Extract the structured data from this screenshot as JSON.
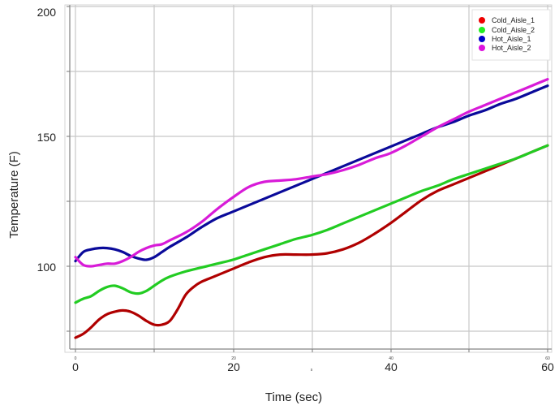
{
  "chart_data": {
    "type": "line",
    "title": "",
    "xlabel": "Time (sec)",
    "ylabel": "Temperature (F)",
    "xlim": [
      0,
      60
    ],
    "ylim": [
      68,
      201
    ],
    "x_ticks": [
      0,
      20,
      40,
      60
    ],
    "y_ticks": [
      100,
      150,
      200
    ],
    "x_minor_grid": [
      10,
      30,
      50
    ],
    "y_minor_grid": [
      75,
      125,
      175
    ],
    "grid": true,
    "legend_position": "top-right",
    "series": [
      {
        "name": "Cold_Aisle_1",
        "color": "#b00000",
        "legend_color": "#ff0000",
        "x": [
          0,
          1,
          2,
          3,
          4,
          5,
          6,
          7,
          8,
          9,
          10,
          11,
          12,
          13,
          14,
          15,
          16,
          18,
          20,
          22,
          24,
          26,
          28,
          30,
          32,
          34,
          36,
          38,
          40,
          42,
          44,
          46,
          48,
          50,
          52,
          54,
          56,
          58,
          60
        ],
        "values": [
          72.5,
          74,
          76.5,
          79.5,
          81.5,
          82.5,
          83,
          82.5,
          81,
          79,
          77.5,
          77.5,
          79,
          83.5,
          89,
          92,
          94,
          96.5,
          99,
          101.5,
          103.5,
          104.5,
          104.5,
          104.5,
          105,
          106.5,
          109,
          112.5,
          116.5,
          121,
          125.5,
          129,
          131.5,
          134,
          136.5,
          139,
          141.5,
          144,
          146.5
        ]
      },
      {
        "name": "Cold_Aisle_2",
        "color": "#22cc22",
        "legend_color": "#22ee22",
        "x": [
          0,
          1,
          2,
          3,
          4,
          5,
          6,
          7,
          8,
          9,
          10,
          11,
          12,
          14,
          16,
          18,
          20,
          22,
          24,
          26,
          28,
          30,
          32,
          34,
          36,
          38,
          40,
          42,
          44,
          46,
          48,
          50,
          52,
          54,
          56,
          58,
          60
        ],
        "values": [
          86,
          87.5,
          88.5,
          90.5,
          92,
          92.5,
          91.5,
          90,
          89.5,
          90.5,
          92.5,
          94.5,
          96,
          98,
          99.5,
          101,
          102.5,
          104.5,
          106.5,
          108.5,
          110.5,
          112,
          114,
          116.5,
          119,
          121.5,
          124,
          126.5,
          129,
          131,
          133.5,
          135.5,
          137.5,
          139.5,
          141.5,
          144,
          146.5
        ]
      },
      {
        "name": "Hot_Aisle_1",
        "color": "#0a0a9a",
        "legend_color": "#0000cc",
        "x": [
          0,
          1,
          2,
          3,
          4,
          5,
          6,
          7,
          8,
          9,
          10,
          11,
          12,
          14,
          16,
          18,
          20,
          22,
          24,
          26,
          28,
          30,
          32,
          34,
          36,
          38,
          40,
          42,
          44,
          46,
          48,
          50,
          52,
          54,
          56,
          58,
          60
        ],
        "values": [
          102,
          105.5,
          106.5,
          107,
          107,
          106.5,
          105.5,
          104,
          103,
          102.5,
          103.5,
          105.5,
          107.5,
          111,
          115,
          118.5,
          121,
          123.5,
          126,
          128.5,
          131,
          133.5,
          136,
          138.5,
          141,
          143.5,
          146,
          148.5,
          151,
          153.5,
          155.5,
          158,
          160,
          162.5,
          164.5,
          167,
          169.5
        ]
      },
      {
        "name": "Hot_Aisle_2",
        "color": "#d81bd8",
        "legend_color": "#dd11dd",
        "x": [
          0,
          1,
          2,
          3,
          4,
          5,
          6,
          7,
          8,
          9,
          10,
          11,
          12,
          14,
          16,
          18,
          20,
          22,
          24,
          26,
          28,
          30,
          32,
          34,
          36,
          38,
          40,
          42,
          44,
          46,
          48,
          50,
          52,
          54,
          56,
          58,
          60
        ],
        "values": [
          103.5,
          100.5,
          100,
          100.5,
          101,
          101,
          102,
          103.5,
          105.5,
          107,
          108,
          108.5,
          110,
          113,
          117,
          122,
          126.5,
          130.5,
          132.5,
          133,
          133.5,
          134.5,
          135.5,
          137,
          139,
          141.5,
          143.5,
          146.5,
          150,
          153.5,
          156.5,
          159.5,
          162,
          164.5,
          167,
          169.5,
          172
        ]
      }
    ]
  },
  "axes": {
    "x_tick_labels": [
      "0",
      "20",
      "40",
      "60"
    ],
    "x_tick_small_labels": [
      "0",
      "20",
      "40",
      "60"
    ],
    "x_stray_label": "s",
    "y_tick_labels": [
      "100",
      "150",
      "200"
    ],
    "xlabel": "Time (sec)",
    "ylabel": "Temperature (F)"
  },
  "legend": {
    "items": [
      {
        "label": "Cold_Aisle_1",
        "color": "#ee0000"
      },
      {
        "label": "Cold_Aisle_2",
        "color": "#22ee22"
      },
      {
        "label": "Hot_Aisle_1",
        "color": "#0000cc"
      },
      {
        "label": "Hot_Aisle_2",
        "color": "#dd11dd"
      }
    ]
  }
}
